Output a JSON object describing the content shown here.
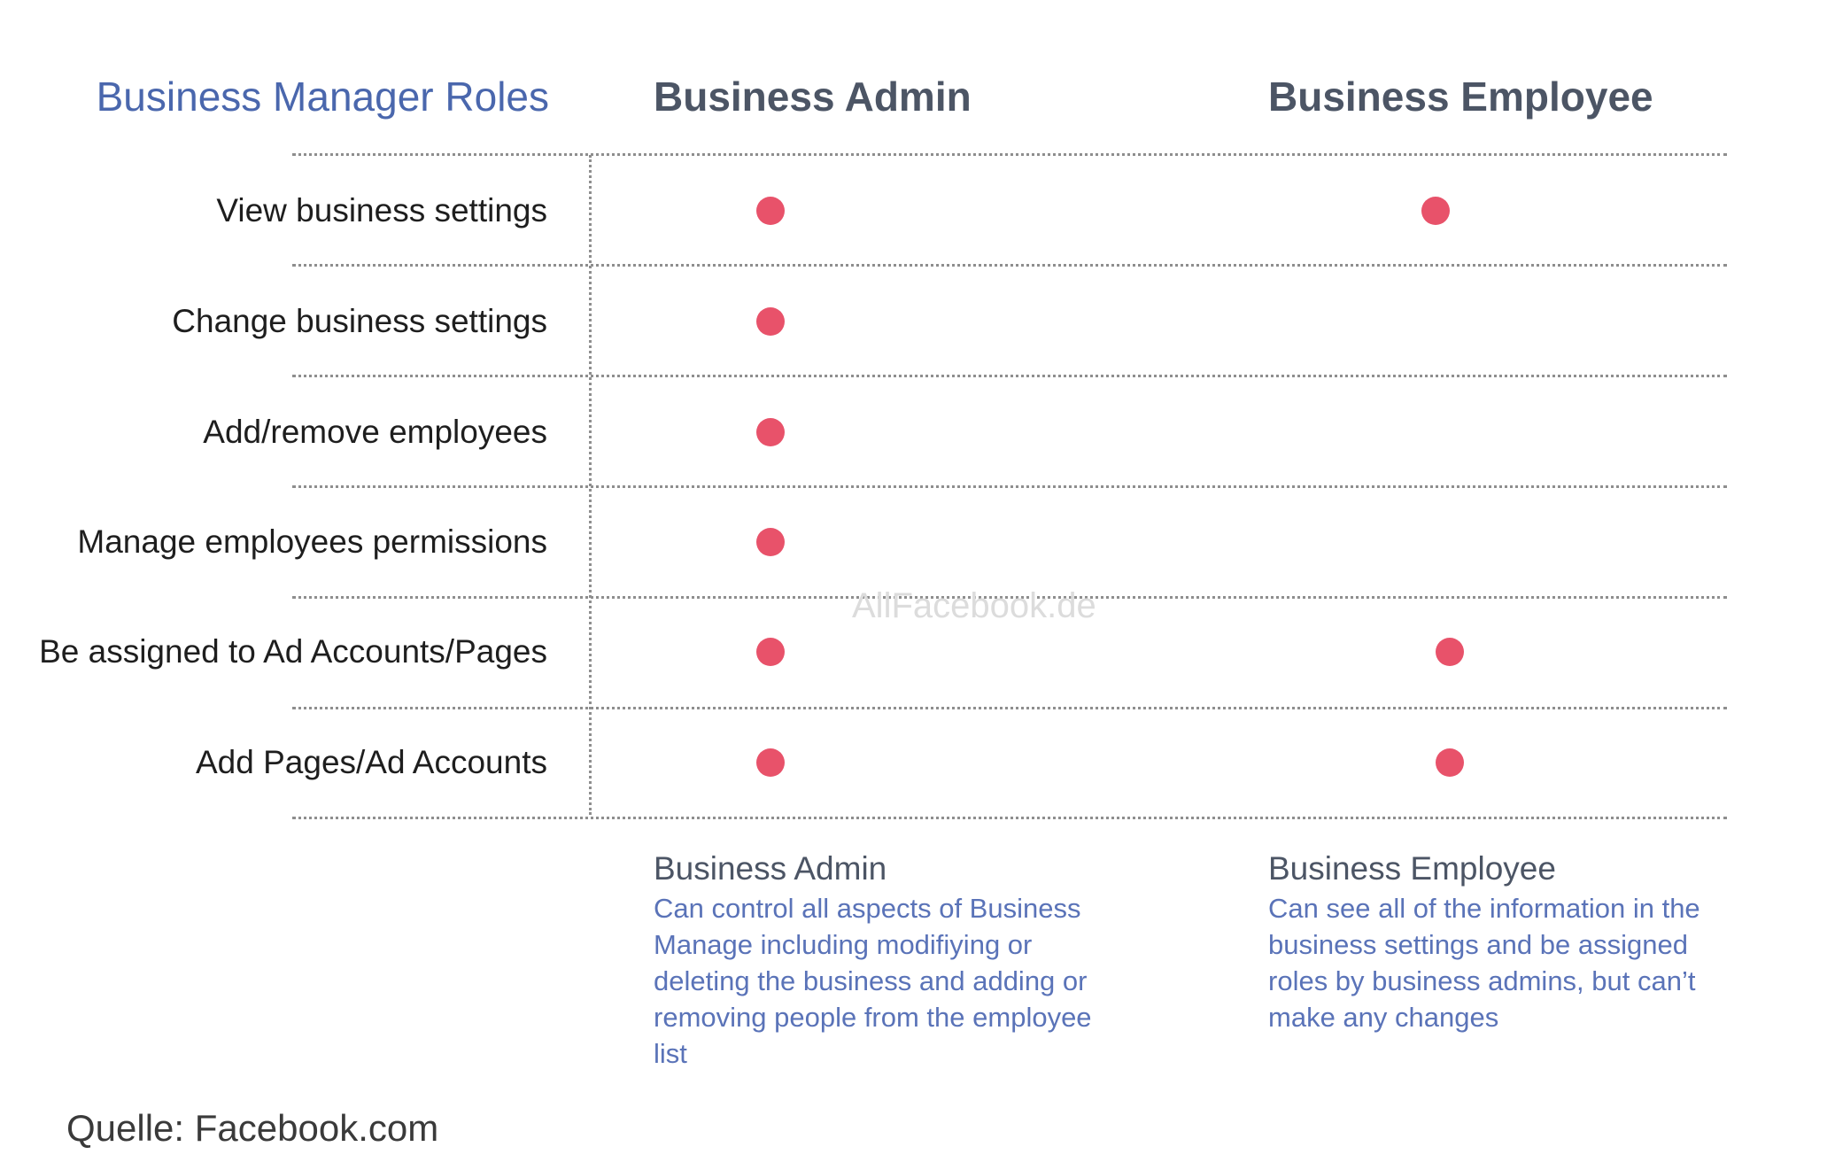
{
  "header": {
    "roles_title": "Business Manager Roles",
    "admin_title": "Business Admin",
    "employee_title": "Business Employee"
  },
  "rows": [
    {
      "label": "View business settings",
      "admin": true,
      "employee": true
    },
    {
      "label": "Change business settings",
      "admin": true,
      "employee": false
    },
    {
      "label": "Add/remove employees",
      "admin": true,
      "employee": false
    },
    {
      "label": "Manage employees permissions",
      "admin": true,
      "employee": false
    },
    {
      "label": "Be assigned to Ad Accounts/Pages",
      "admin": true,
      "employee": true
    },
    {
      "label": "Add Pages/Ad Accounts",
      "admin": true,
      "employee": true
    }
  ],
  "descriptions": {
    "admin": {
      "title": "Business Admin",
      "body": "Can control all aspects of Business Manage including modifiying or deleting the business and adding or removing people from the employee list"
    },
    "employee": {
      "title": "Business Employee",
      "body": "Can see all of the information in the business settings and be assigned roles by business admins, but can’t make any changes"
    }
  },
  "watermark": "AllFacebook.de",
  "source": "Quelle: Facebook.com",
  "colors": {
    "dot": "#e8526a",
    "accent_blue": "#4a67ad",
    "header_gray": "#4c5565"
  }
}
